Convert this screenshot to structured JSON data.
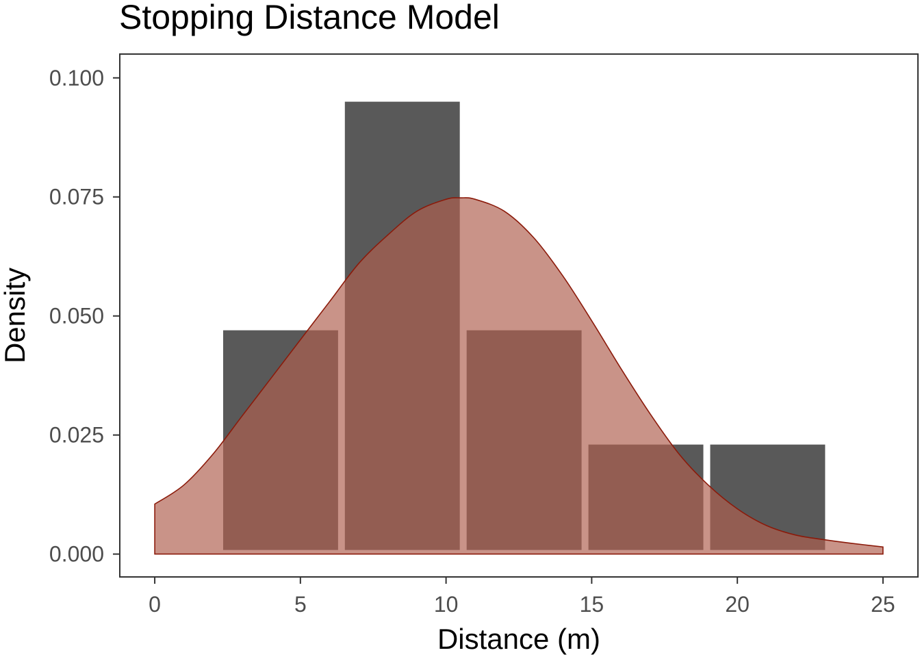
{
  "chart_data": {
    "type": "histogram-with-density",
    "title": "Stopping Distance Model",
    "xlabel": "Distance (m)",
    "ylabel": "Density",
    "xlim": [
      -1.2,
      26.2
    ],
    "ylim": [
      -0.0048,
      0.105
    ],
    "x_ticks": [
      0,
      5,
      10,
      15,
      20,
      25
    ],
    "y_ticks": [
      0.0,
      0.025,
      0.05,
      0.075,
      0.1
    ],
    "y_tick_labels": [
      "0.000",
      "0.025",
      "0.050",
      "0.075",
      "0.100"
    ],
    "grid": false,
    "legend": "none",
    "bins": [
      {
        "x0": 2.23,
        "x1": 6.41,
        "density": 0.047
      },
      {
        "x0": 6.41,
        "x1": 10.59,
        "density": 0.095
      },
      {
        "x0": 10.59,
        "x1": 14.77,
        "density": 0.047
      },
      {
        "x0": 14.77,
        "x1": 18.95,
        "density": 0.023
      },
      {
        "x0": 18.95,
        "x1": 23.13,
        "density": 0.023
      }
    ],
    "density_curve": {
      "x": [
        0,
        1,
        2,
        3,
        4,
        5,
        6,
        7,
        8,
        9,
        10,
        10.5,
        11,
        12,
        13,
        14,
        15,
        16,
        17,
        18,
        19,
        20,
        21,
        22,
        23,
        24,
        25
      ],
      "y": [
        0.0105,
        0.0145,
        0.021,
        0.029,
        0.037,
        0.045,
        0.053,
        0.061,
        0.067,
        0.072,
        0.0745,
        0.0748,
        0.0745,
        0.072,
        0.0665,
        0.0585,
        0.049,
        0.039,
        0.0295,
        0.021,
        0.0145,
        0.0095,
        0.006,
        0.004,
        0.003,
        0.0022,
        0.0015
      ]
    },
    "colors": {
      "bar_fill": "#595959",
      "density_fill": "#b0604f",
      "density_line": "#8b1a0a",
      "panel_border": "#333333",
      "tick_label": "#4d4d4d"
    }
  }
}
